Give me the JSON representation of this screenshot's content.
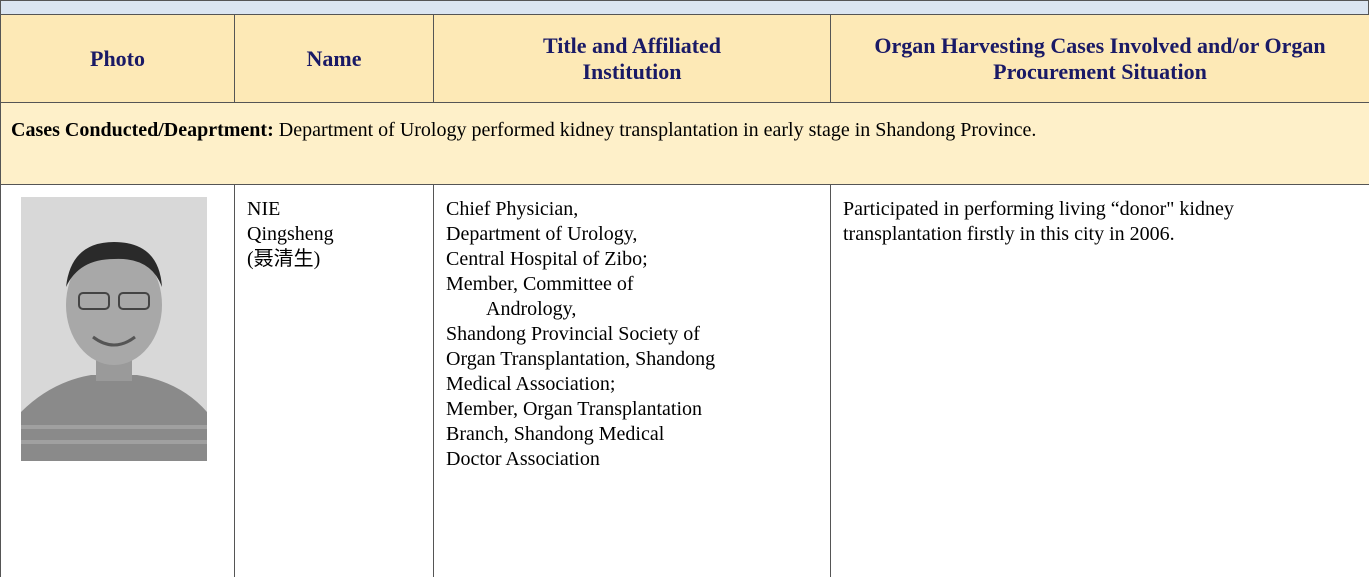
{
  "table": {
    "headers": [
      "Photo",
      "Name",
      "Title and Affiliated Institution",
      "Organ Harvesting Cases Involved and/or Organ Procurement Situation"
    ],
    "section": {
      "label": "Cases Conducted/Deaprtment:",
      "text": "Department of Urology performed kidney transplantation in early stage in Shandong Province."
    },
    "rows": [
      {
        "name": [
          "NIE",
          "Qingsheng",
          "(聂清生)"
        ],
        "title": [
          "Chief Physician,",
          "Department of Urology,",
          "Central Hospital of Zibo;",
          "Member, Committee of",
          "Andrology,",
          "Shandong Provincial Society of",
          "Organ Transplantation, Shandong",
          "Medical Association;",
          "Member, Organ Transplantation",
          "Branch, Shandong Medical",
          "Doctor Association"
        ],
        "cases": "Participated in performing living “donor\" kidney transplantation firstly in this city in 2006."
      }
    ]
  }
}
